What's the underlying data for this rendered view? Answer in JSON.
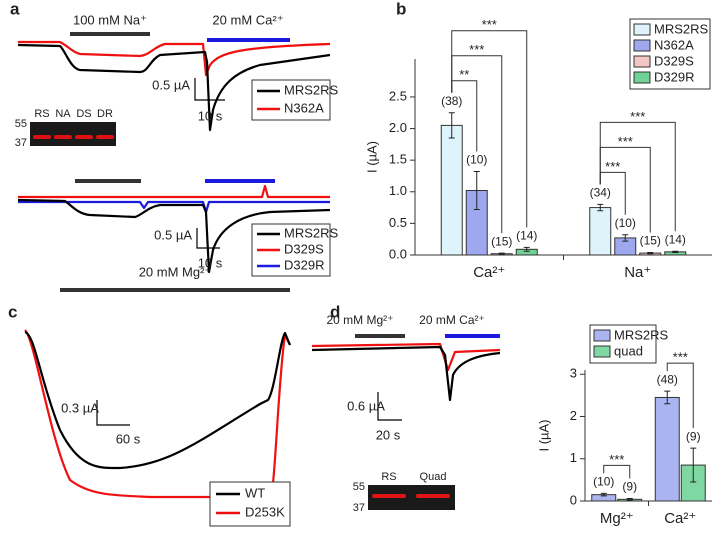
{
  "panel_labels": [
    "a",
    "b",
    "c",
    "d"
  ],
  "panel_a": {
    "top": {
      "stim_na": "100 mM Na⁺",
      "stim_ca": "20 mM Ca²⁺",
      "scale_y": "0.5 µA",
      "scale_x": "10 s",
      "legend": [
        "MRS2RS",
        "N362A"
      ]
    },
    "blot": {
      "lanes": [
        "RS",
        "NA",
        "DS",
        "DR"
      ],
      "markers": [
        "55",
        "37"
      ]
    },
    "bottom": {
      "scale_y": "0.5 µA",
      "scale_x": "10 s",
      "legend": [
        "MRS2RS",
        "D329S",
        "D329R"
      ]
    }
  },
  "panel_c": {
    "stim": "20 mM Mg²⁺",
    "scale_y": "0.3 µA",
    "scale_x": "60 s",
    "legend": [
      "WT",
      "D253K"
    ]
  },
  "panel_d": {
    "stim_mg": "20 mM Mg²⁺",
    "stim_ca": "20 mM Ca²⁺",
    "scale_y": "0.6 µA",
    "scale_x": "20 s",
    "blot": {
      "lanes": [
        "RS",
        "Quad"
      ],
      "markers": [
        "55",
        "37"
      ]
    }
  },
  "chart_data": [
    {
      "type": "bar",
      "ylabel": "I (µA)",
      "categories": [
        "Ca²⁺",
        "Na⁺"
      ],
      "series": [
        {
          "name": "MRS2RS",
          "color": "#dff3fb",
          "values": [
            2.05,
            0.75
          ],
          "errors": [
            0.2,
            0.05
          ],
          "n_labels": [
            "(38)",
            "(34)"
          ]
        },
        {
          "name": "N362A",
          "color": "#9ea8ef",
          "values": [
            1.02,
            0.27
          ],
          "errors": [
            0.3,
            0.05
          ],
          "n_labels": [
            "(10)",
            "(10)"
          ]
        },
        {
          "name": "D329S",
          "color": "#f3c6c6",
          "values": [
            0.02,
            0.03
          ],
          "errors": [
            0.01,
            0.01
          ],
          "n_labels": [
            "(15)",
            "(15)"
          ]
        },
        {
          "name": "D329R",
          "color": "#72d196",
          "values": [
            0.09,
            0.05
          ],
          "errors": [
            0.03,
            0.01
          ],
          "n_labels": [
            "(14)",
            "(14)"
          ]
        }
      ],
      "significance": [
        "**",
        "***",
        "***",
        "***",
        "***",
        "***"
      ],
      "ylim": [
        0,
        3.1
      ],
      "yticks": [
        {
          "value": 0,
          "label": "0.0"
        },
        0.5,
        {
          "value": 1,
          "label": "1.0"
        },
        1.5,
        {
          "value": 2,
          "label": "2.0"
        },
        2.5
      ],
      "legend": "upper right"
    },
    {
      "type": "bar",
      "ylabel": "I (µA)",
      "categories": [
        "Mg²⁺",
        "Ca²⁺"
      ],
      "series": [
        {
          "name": "MRS2RS",
          "color": "#aab4f1",
          "values": [
            0.15,
            2.45
          ],
          "errors": [
            0.03,
            0.15
          ],
          "n_labels": [
            "(10)",
            "(48)"
          ]
        },
        {
          "name": "quad",
          "color": "#7fd7a2",
          "values": [
            0.04,
            0.85
          ],
          "errors": [
            0.02,
            0.4
          ],
          "n_labels": [
            "(9)",
            "(9)"
          ]
        }
      ],
      "significance": [
        "***",
        "***"
      ],
      "ylim": [
        0,
        3.1
      ],
      "yticks": [
        0,
        1,
        2,
        3
      ],
      "legend": "upper left"
    }
  ]
}
